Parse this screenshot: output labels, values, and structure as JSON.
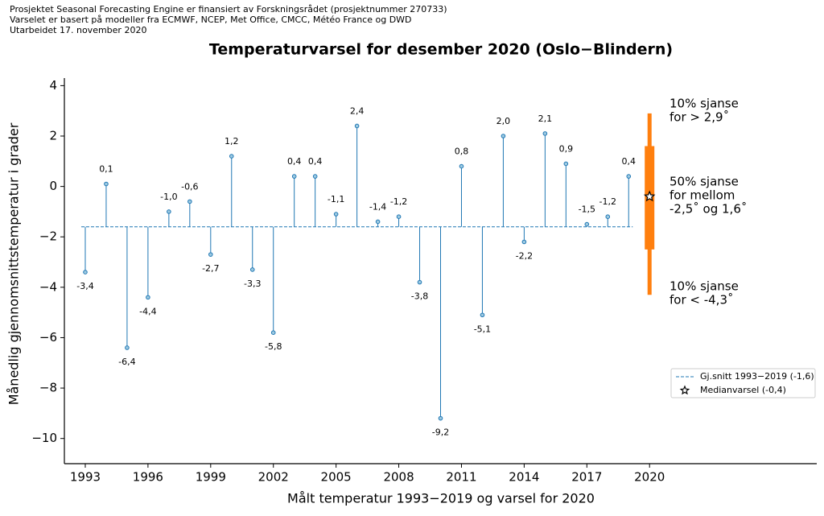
{
  "header": [
    "Prosjektet Seasonal Forecasting Engine er finansiert av Forskningsrådet (prosjektnummer 270733)",
    "Varselet er basert på modeller fra ECMWF, NCEP, Met Office, CMCC, Météo France og DWD",
    "Utarbeidet 17. november 2020"
  ],
  "chart_data": {
    "type": "stem",
    "title": "Temperaturvarsel for desember 2020 (Oslo−Blindern)",
    "x_label": "Målt temperatur 1993−2019 og varsel for 2020",
    "y_label": "Månedlig gjennomsnittstemperatur i grader",
    "x": [
      1993,
      1994,
      1995,
      1996,
      1997,
      1998,
      1999,
      2000,
      2001,
      2002,
      2003,
      2004,
      2005,
      2006,
      2007,
      2008,
      2009,
      2010,
      2011,
      2012,
      2013,
      2014,
      2015,
      2016,
      2017,
      2018,
      2019
    ],
    "values": [
      -3.4,
      0.1,
      -6.4,
      -4.4,
      -1.0,
      -0.6,
      -2.7,
      1.2,
      -3.3,
      -5.8,
      0.4,
      0.4,
      -1.1,
      2.4,
      -1.4,
      -1.2,
      -3.8,
      -9.2,
      0.8,
      -5.1,
      2.0,
      -2.2,
      2.1,
      0.9,
      -1.5,
      -1.2,
      0.4
    ],
    "value_labels": [
      "-3,4",
      "0,1",
      "-6,4",
      "-4,4",
      "-1,0",
      "-0,6",
      "-2,7",
      "1,2",
      "-3,3",
      "-5,8",
      "0,4",
      "0,4",
      "-1,1",
      "2,4",
      "-1,4",
      "-1,2",
      "-3,8",
      "-9,2",
      "0,8",
      "-5,1",
      "2,0",
      "-2,2",
      "2,1",
      "0,9",
      "-1,5",
      "-1,2",
      "0,4"
    ],
    "color": "#1f77b4",
    "mean": -1.6,
    "mean_legend": "Gj.snitt 1993−2019 (-1,6)",
    "forecast": {
      "x": 2020,
      "median": -0.4,
      "low10": -4.3,
      "high10": 2.9,
      "low50": -2.5,
      "high50": 1.6,
      "color": "#ff7f0e",
      "median_legend": "Medianvarsel (-0,4)"
    },
    "annotations": [
      [
        "10% sjanse",
        "for > 2,9˚"
      ],
      [
        "50% sjanse",
        "for mellom",
        "-2,5˚ og 1,6˚"
      ],
      [
        "10% sjanse",
        "for < -4,3˚"
      ]
    ],
    "xlim": [
      1992,
      2028
    ],
    "ylim": [
      -11,
      4.3
    ],
    "xticks": [
      1993,
      1996,
      1999,
      2002,
      2005,
      2008,
      2011,
      2014,
      2017,
      2020
    ],
    "yticks": [
      {
        "value": -10,
        "label": "−10"
      },
      {
        "value": -8,
        "label": "−8"
      },
      {
        "value": -6,
        "label": "−6"
      },
      {
        "value": -4,
        "label": "−4"
      },
      {
        "value": -2,
        "label": "−2"
      },
      0,
      2,
      4
    ]
  }
}
